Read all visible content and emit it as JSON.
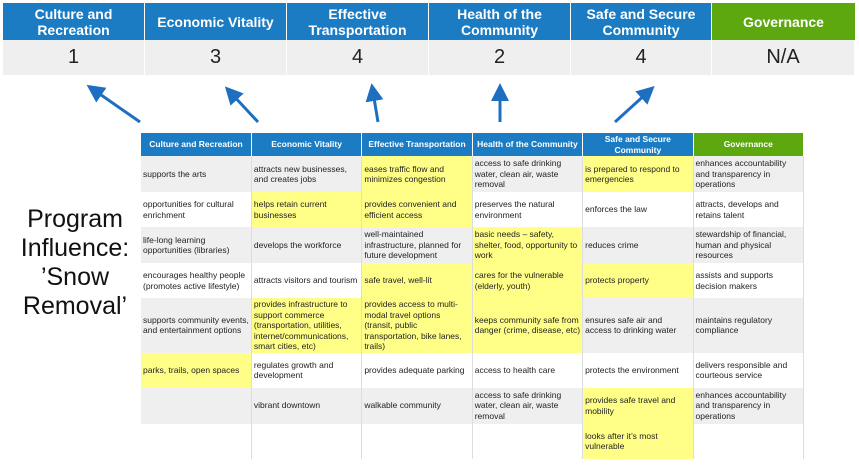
{
  "categories": [
    {
      "label": "Culture and Recreation",
      "score": "1",
      "color": "#1b7cc4"
    },
    {
      "label": "Economic Vitality",
      "score": "3",
      "color": "#1b7cc4"
    },
    {
      "label": "Effective Transportation",
      "score": "4",
      "color": "#1b7cc4"
    },
    {
      "label": "Health of the Community",
      "score": "2",
      "color": "#1b7cc4"
    },
    {
      "label": "Safe and Secure Community",
      "score": "4",
      "color": "#1b7cc4"
    },
    {
      "label": "Governance",
      "score": "N/A",
      "color": "#5ea80f"
    }
  ],
  "program_influence": "Program Influence: ’Snow Removal’",
  "highlight_color": "#ffff88",
  "arrow_color": "#1f6fc0",
  "table": {
    "headers": [
      "Culture and Recreation",
      "Economic Vitality",
      "Effective Transportation",
      "Health of the Community",
      "Safe and Secure Community",
      "Governance"
    ],
    "rows": [
      {
        "cells": [
          "supports the arts",
          "attracts new businesses, and creates jobs",
          "eases traffic flow and minimizes congestion",
          "access to safe drinking water, clean air, waste removal",
          "is prepared to respond to emergencies",
          "enhances accountability and transparency in operations"
        ],
        "highlighted": [
          false,
          false,
          true,
          false,
          true,
          false
        ]
      },
      {
        "cells": [
          "opportunities for cultural enrichment",
          "helps retain current businesses",
          "provides convenient and efficient access",
          "preserves the natural environment",
          "enforces the law",
          "attracts, develops and retains talent"
        ],
        "highlighted": [
          false,
          true,
          true,
          false,
          false,
          false
        ]
      },
      {
        "cells": [
          "life-long learning opportunities (libraries)",
          "develops the workforce",
          "well-maintained infrastructure, planned for future development",
          "basic needs – safety, shelter, food, opportunity to work",
          "reduces crime",
          "stewardship of financial, human and physical resources"
        ],
        "highlighted": [
          false,
          false,
          false,
          true,
          false,
          false
        ]
      },
      {
        "cells": [
          "encourages healthy people (promotes active lifestyle)",
          "attracts visitors and tourism",
          "safe travel, well-lit",
          "cares for the vulnerable (elderly, youth)",
          "protects property",
          "assists and supports decision makers"
        ],
        "highlighted": [
          false,
          false,
          true,
          true,
          true,
          false
        ]
      },
      {
        "cells": [
          "supports community events, and entertainment options",
          "provides infrastructure to support commerce (transportation, utilities, internet/communications, smart cities, etc)",
          "provides access to multi-modal travel options (transit, public transportation, bike lanes, trails)",
          "keeps community safe from danger (crime, disease, etc)",
          "ensures safe air and access to drinking water",
          "maintains regulatory compliance"
        ],
        "highlighted": [
          false,
          true,
          true,
          true,
          false,
          false
        ]
      },
      {
        "cells": [
          "parks, trails, open spaces",
          "regulates growth and development",
          "provides adequate parking",
          "access to health care",
          "protects the environment",
          "delivers responsible and courteous service"
        ],
        "highlighted": [
          true,
          false,
          false,
          false,
          false,
          false
        ]
      },
      {
        "cells": [
          "",
          "vibrant downtown",
          "walkable community",
          "access to safe drinking water, clean air, waste removal",
          "provides safe travel and mobility",
          "enhances accountability and transparency in operations"
        ],
        "highlighted": [
          false,
          false,
          false,
          false,
          true,
          false
        ]
      },
      {
        "cells": [
          "",
          "",
          "",
          "",
          "looks after it’s most vulnerable",
          ""
        ],
        "highlighted": [
          false,
          false,
          false,
          false,
          true,
          false
        ]
      }
    ]
  }
}
